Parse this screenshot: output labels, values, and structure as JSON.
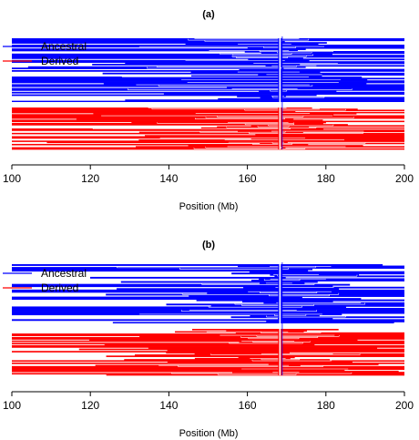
{
  "chart_data": [
    {
      "type": "line",
      "panel_label": "(a)",
      "xlabel": "Position (Mb)",
      "xlim": [
        100,
        200
      ],
      "xticks": [
        100,
        120,
        140,
        160,
        180,
        200
      ],
      "focal_position": 168.3,
      "legend": {
        "placement": "top-left",
        "entries": [
          {
            "label": "Ancestral",
            "color": "#0000ff"
          },
          {
            "label": "Derived",
            "color": "#ff0000"
          }
        ]
      },
      "series": [
        {
          "name": "Ancestral",
          "color": "#0000ff",
          "haplotype_count": 50,
          "left_extent_range": [
            100,
            168
          ],
          "right_extent_range": [
            169,
            200
          ]
        },
        {
          "name": "Derived",
          "color": "#ff0000",
          "haplotype_count": 38,
          "left_extent_range": [
            100,
            165
          ],
          "right_extent_range": [
            169,
            200
          ]
        }
      ]
    },
    {
      "type": "line",
      "panel_label": "(b)",
      "xlabel": "Position (Mb)",
      "xlim": [
        100,
        200
      ],
      "xticks": [
        100,
        120,
        140,
        160,
        180,
        200
      ],
      "focal_position": 168.3,
      "legend": {
        "placement": "top-left",
        "entries": [
          {
            "label": "Ancestral",
            "color": "#0000ff"
          },
          {
            "label": "Derived",
            "color": "#ff0000"
          }
        ]
      },
      "series": [
        {
          "name": "Ancestral",
          "color": "#0000ff",
          "haplotype_count": 42,
          "left_extent_range": [
            100,
            168
          ],
          "right_extent_range": [
            169,
            200
          ]
        },
        {
          "name": "Derived",
          "color": "#ff0000",
          "haplotype_count": 40,
          "left_extent_range": [
            100,
            168
          ],
          "right_extent_range": [
            169,
            200
          ]
        }
      ]
    }
  ]
}
